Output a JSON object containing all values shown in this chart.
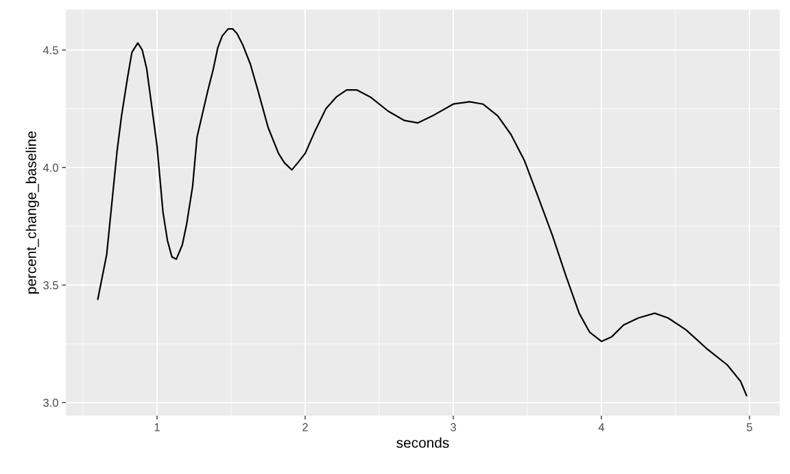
{
  "chart_data": {
    "type": "line",
    "xlabel": "seconds",
    "ylabel": "percent_change_baseline",
    "x": [
      0.6,
      0.66,
      0.73,
      0.76,
      0.8,
      0.83,
      0.87,
      0.9,
      0.93,
      0.96,
      1.0,
      1.04,
      1.07,
      1.1,
      1.13,
      1.17,
      1.2,
      1.24,
      1.27,
      1.34,
      1.38,
      1.41,
      1.44,
      1.48,
      1.51,
      1.54,
      1.58,
      1.63,
      1.68,
      1.75,
      1.82,
      1.86,
      1.91,
      1.95,
      2.0,
      2.07,
      2.14,
      2.21,
      2.28,
      2.35,
      2.44,
      2.56,
      2.67,
      2.76,
      2.86,
      3.0,
      3.11,
      3.2,
      3.3,
      3.39,
      3.48,
      3.57,
      3.67,
      3.76,
      3.85,
      3.92,
      4.0,
      4.07,
      4.15,
      4.25,
      4.36,
      4.45,
      4.57,
      4.71,
      4.85,
      4.94,
      4.98
    ],
    "series": [
      {
        "color": "#000000",
        "values": [
          3.44,
          3.63,
          4.07,
          4.22,
          4.38,
          4.49,
          4.53,
          4.5,
          4.42,
          4.28,
          4.09,
          3.81,
          3.69,
          3.62,
          3.61,
          3.67,
          3.76,
          3.92,
          4.13,
          4.32,
          4.42,
          4.51,
          4.56,
          4.59,
          4.59,
          4.57,
          4.52,
          4.44,
          4.33,
          4.17,
          4.06,
          4.02,
          3.99,
          4.02,
          4.06,
          4.16,
          4.25,
          4.3,
          4.33,
          4.33,
          4.3,
          4.24,
          4.2,
          4.19,
          4.22,
          4.27,
          4.28,
          4.27,
          4.22,
          4.14,
          4.03,
          3.88,
          3.71,
          3.54,
          3.38,
          3.3,
          3.26,
          3.28,
          3.33,
          3.36,
          3.38,
          3.36,
          3.31,
          3.23,
          3.16,
          3.09,
          3.03
        ]
      }
    ],
    "xlim": [
      0.384,
      5.204
    ],
    "ylim": [
      2.944,
      4.672
    ],
    "xticks": [
      1,
      2,
      3,
      4,
      5
    ],
    "yticks": [
      {
        "value": 3,
        "label": "3.0"
      },
      3.5,
      {
        "value": 4,
        "label": "4.0"
      },
      4.5
    ],
    "grid": true,
    "legend": false,
    "marker": "none",
    "line_style": "solid"
  }
}
